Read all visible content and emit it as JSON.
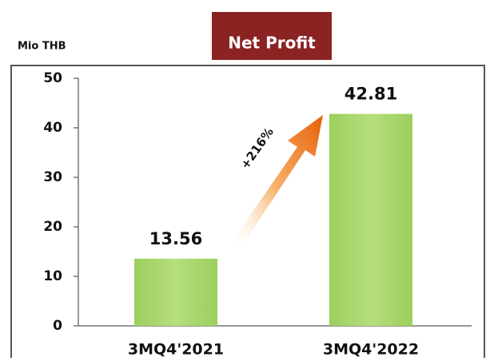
{
  "chart_data": {
    "type": "bar",
    "title": "Net Profit",
    "ylabel": "Mio THB",
    "categories": [
      "3MQ4'2021",
      "3MQ4'2022"
    ],
    "values": [
      13.56,
      42.81
    ],
    "color": "#a8d66c",
    "annotation": "+216%",
    "ylim": [
      0,
      50
    ],
    "yticks": [
      0,
      10,
      20,
      30,
      40,
      50
    ],
    "grid": false
  }
}
